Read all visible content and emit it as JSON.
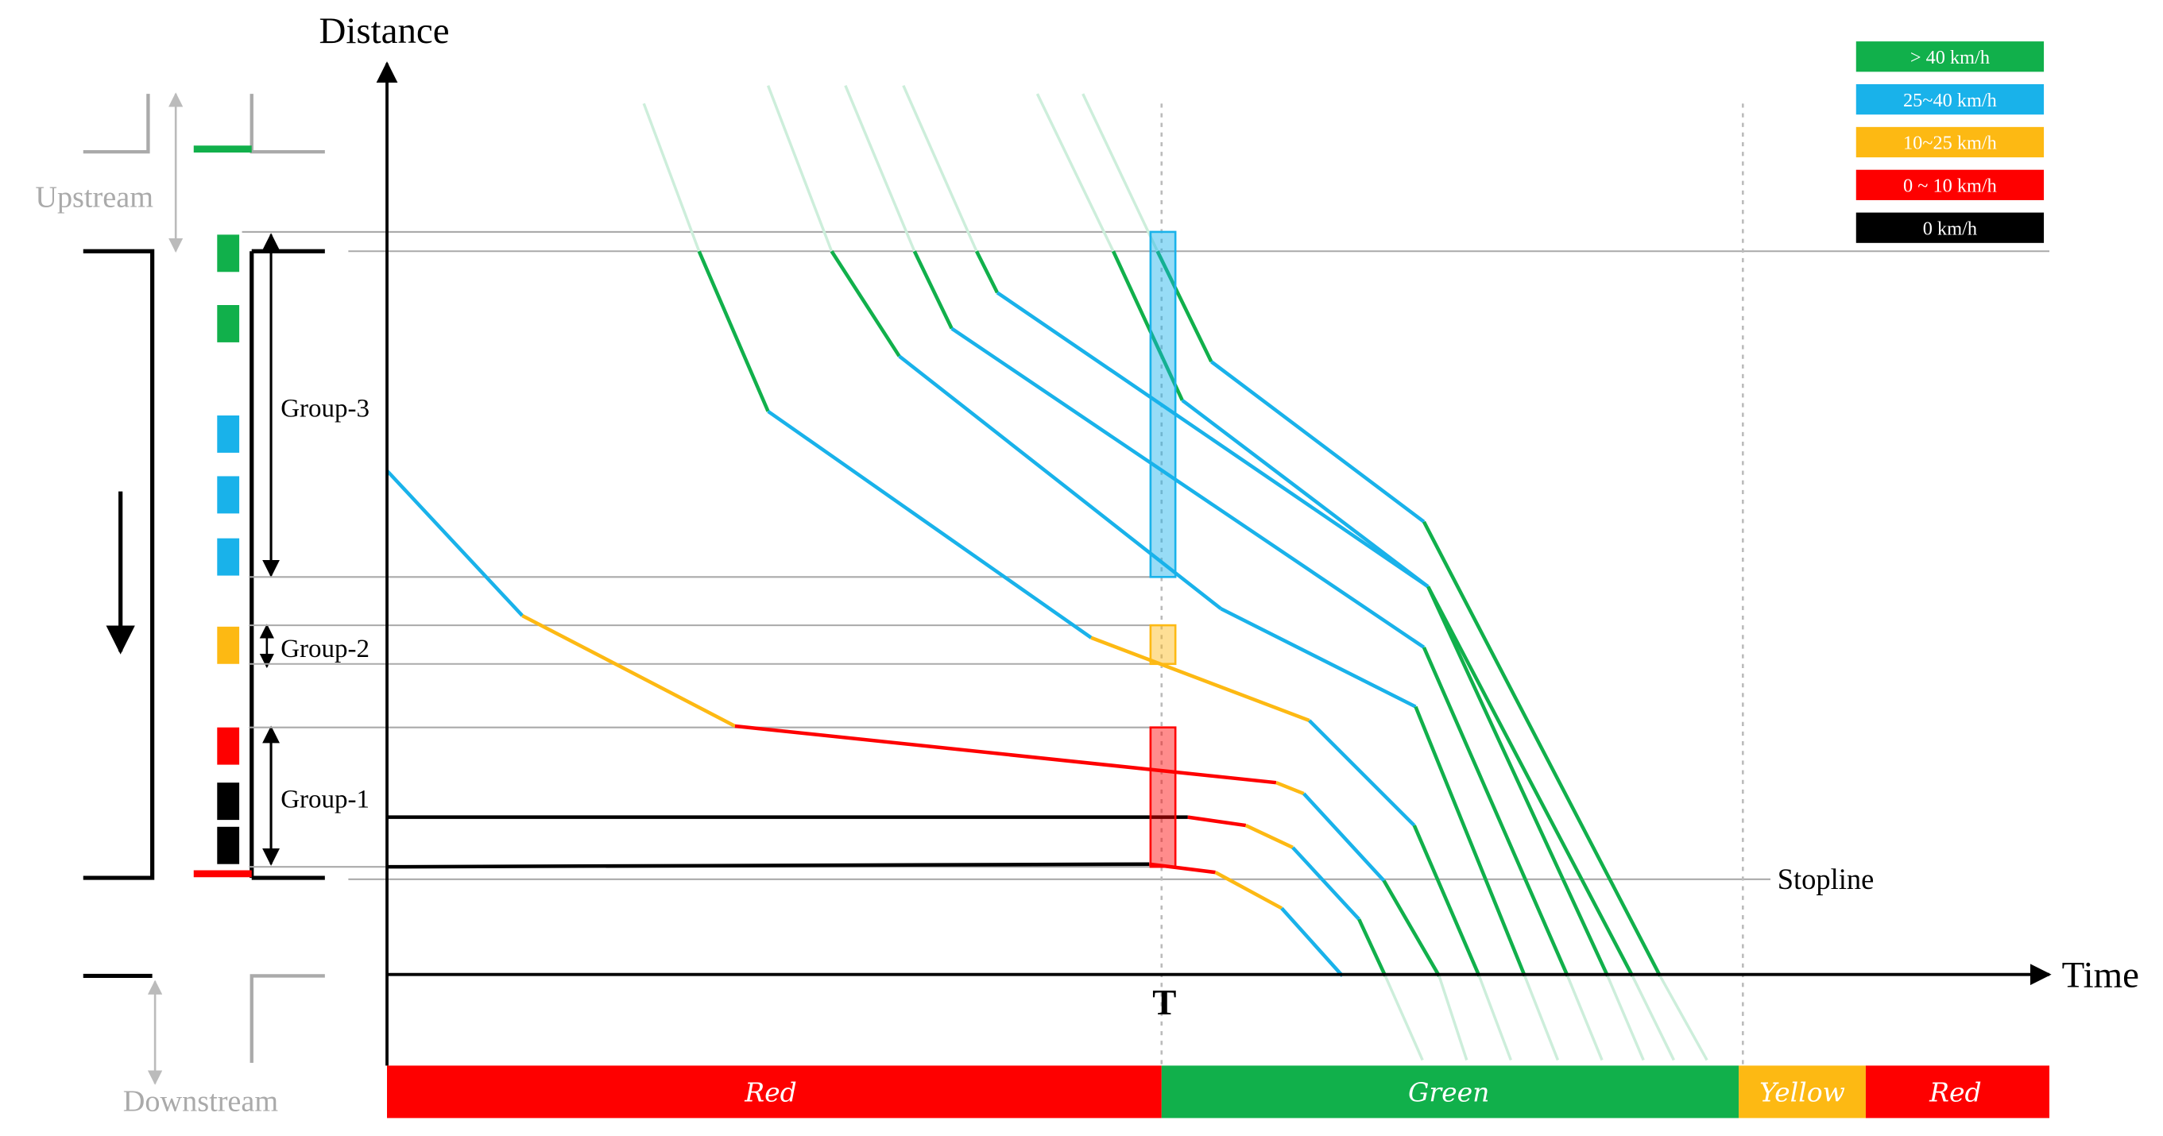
{
  "axes": {
    "y_label": "Distance",
    "x_label": "Time",
    "t_marker": "T",
    "stopline_label": "Stopline"
  },
  "road": {
    "upstream_label": "Upstream",
    "downstream_label": "Downstream"
  },
  "groups": [
    {
      "label": "Group-3"
    },
    {
      "label": "Group-2"
    },
    {
      "label": "Group-1"
    }
  ],
  "legend": [
    {
      "label": "> 40 km/h",
      "color": "#11b04b",
      "key": "over40"
    },
    {
      "label": "25~40 km/h",
      "color": "#19b2ea",
      "key": "s25to40"
    },
    {
      "label": "10~25 km/h",
      "color": "#fdb913",
      "key": "s10to25"
    },
    {
      "label": "0 ~ 10 km/h",
      "color": "#fe0000",
      "key": "s0to10"
    },
    {
      "label": "0 km/h",
      "color": "#000000",
      "key": "zero"
    }
  ],
  "signal_phases": [
    {
      "label": "Red",
      "color": "#fe0000"
    },
    {
      "label": "Green",
      "color": "#11b04b"
    },
    {
      "label": "Yellow",
      "color": "#fdb913"
    },
    {
      "label": "Red",
      "color": "#fe0000"
    }
  ],
  "colors": {
    "axis": "#000000",
    "guide": "#aaaaaa",
    "faded_green": "#cdeedb"
  }
}
